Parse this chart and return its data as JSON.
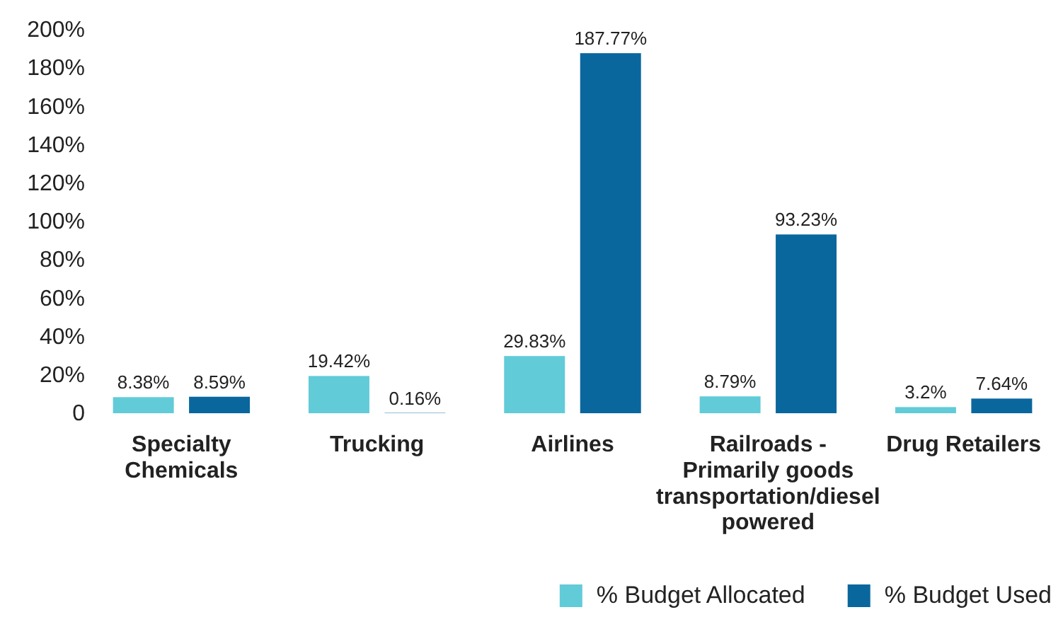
{
  "chart_data": {
    "type": "bar",
    "categories": [
      "Specialty Chemicals",
      "Trucking",
      "Airlines",
      "Railroads - Primarily goods transportation/diesel powered",
      "Drug Retailers"
    ],
    "series": [
      {
        "name": "% Budget Allocated",
        "color": "#62cbd8",
        "values": [
          8.38,
          19.42,
          29.83,
          8.79,
          3.2
        ],
        "value_labels": [
          "8.38%",
          "19.42%",
          "29.83%",
          "8.79%",
          "3.2%"
        ]
      },
      {
        "name": "% Budget Used",
        "color": "#0a679e",
        "values": [
          8.59,
          0.16,
          187.77,
          93.23,
          7.64
        ],
        "value_labels": [
          "8.59%",
          "0.16%",
          "187.77%",
          "93.23%",
          "7.64%"
        ]
      }
    ],
    "ylim": [
      0,
      200
    ],
    "yticks": [
      {
        "value": 0,
        "label": "0"
      },
      {
        "value": 20,
        "label": "20%"
      },
      {
        "value": 40,
        "label": "40%"
      },
      {
        "value": 60,
        "label": "60%"
      },
      {
        "value": 80,
        "label": "80%"
      },
      {
        "value": 100,
        "label": "100%"
      },
      {
        "value": 120,
        "label": "120%"
      },
      {
        "value": 140,
        "label": "140%"
      },
      {
        "value": 160,
        "label": "160%"
      },
      {
        "value": 180,
        "label": "180%"
      },
      {
        "value": 200,
        "label": "200%"
      }
    ],
    "legend": "bottom right"
  }
}
